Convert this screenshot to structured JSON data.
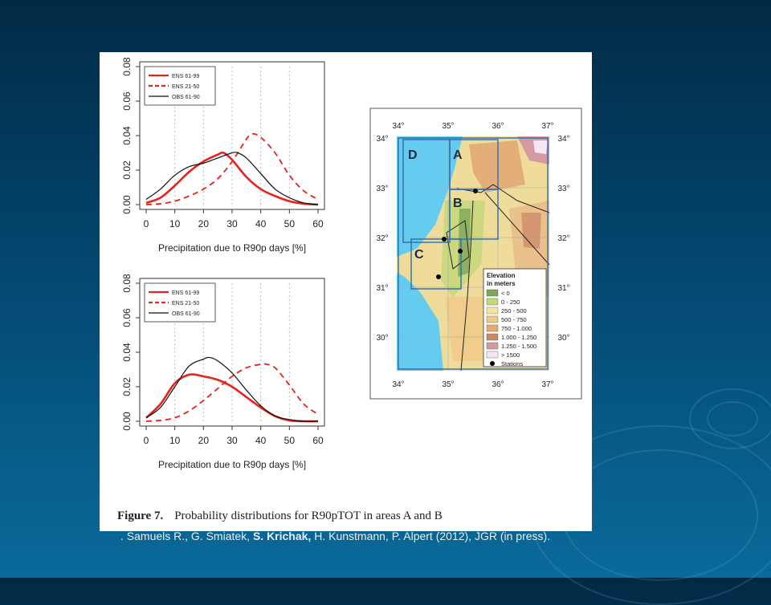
{
  "chart_data": [
    {
      "type": "line",
      "xlabel": "Precipitation due to R90p days [%]",
      "xticks": [
        "0",
        "10",
        "20",
        "30",
        "40",
        "50",
        "60"
      ],
      "yticks": [
        "0.00",
        "0.02",
        "0.04",
        "0.06",
        "0.08"
      ],
      "xlim": [
        0,
        60
      ],
      "ylim": [
        0,
        0.08
      ],
      "grid": "vertical dotted",
      "legend_position": "top-left",
      "series": [
        {
          "name": "ENS 61-99",
          "color": "#e8221c",
          "dash": "solid",
          "x": [
            0,
            5,
            10,
            15,
            20,
            25,
            27,
            30,
            35,
            40,
            45,
            50,
            55,
            60
          ],
          "values": [
            0.001,
            0.004,
            0.011,
            0.019,
            0.025,
            0.029,
            0.03,
            0.026,
            0.016,
            0.009,
            0.005,
            0.002,
            0.0005,
            0
          ]
        },
        {
          "name": "ENS 21-50",
          "color": "#e8221c",
          "dash": "dashed",
          "x": [
            0,
            5,
            10,
            15,
            20,
            25,
            30,
            35,
            37,
            40,
            45,
            50,
            55,
            60
          ],
          "values": [
            0,
            0.0005,
            0.002,
            0.005,
            0.009,
            0.015,
            0.025,
            0.038,
            0.041,
            0.039,
            0.03,
            0.017,
            0.008,
            0.003
          ]
        },
        {
          "name": "OBS 61-90",
          "color": "#111111",
          "dash": "solid",
          "x": [
            0,
            5,
            10,
            15,
            20,
            25,
            30,
            32,
            35,
            40,
            45,
            50,
            55,
            60
          ],
          "values": [
            0.003,
            0.009,
            0.017,
            0.022,
            0.024,
            0.027,
            0.03,
            0.03,
            0.027,
            0.018,
            0.009,
            0.004,
            0.001,
            0
          ]
        }
      ]
    },
    {
      "type": "line",
      "xlabel": "Precipitation due to R90p days [%]",
      "xticks": [
        "0",
        "10",
        "20",
        "30",
        "40",
        "50",
        "60"
      ],
      "yticks": [
        "0.00",
        "0.02",
        "0.04",
        "0.06",
        "0.08"
      ],
      "xlim": [
        0,
        60
      ],
      "ylim": [
        0,
        0.08
      ],
      "grid": "vertical dotted",
      "legend_position": "top-left",
      "series": [
        {
          "name": "ENS 61-99",
          "color": "#e8221c",
          "dash": "solid",
          "x": [
            0,
            5,
            10,
            15,
            20,
            25,
            30,
            35,
            40,
            45,
            50,
            55,
            60
          ],
          "values": [
            0.002,
            0.01,
            0.022,
            0.027,
            0.026,
            0.024,
            0.02,
            0.014,
            0.008,
            0.003,
            0.0005,
            0,
            0
          ]
        },
        {
          "name": "ENS 21-50",
          "color": "#e8221c",
          "dash": "dashed",
          "x": [
            0,
            5,
            10,
            15,
            20,
            25,
            30,
            35,
            40,
            42,
            45,
            50,
            55,
            60
          ],
          "values": [
            0,
            0.0005,
            0.002,
            0.006,
            0.012,
            0.019,
            0.026,
            0.031,
            0.033,
            0.033,
            0.031,
            0.021,
            0.01,
            0.004
          ]
        },
        {
          "name": "OBS 61-90",
          "color": "#111111",
          "dash": "solid",
          "x": [
            0,
            5,
            10,
            15,
            20,
            22,
            25,
            30,
            35,
            40,
            45,
            50,
            55,
            60
          ],
          "values": [
            0.002,
            0.008,
            0.02,
            0.032,
            0.036,
            0.037,
            0.035,
            0.028,
            0.018,
            0.009,
            0.003,
            0.001,
            0,
            0
          ]
        }
      ]
    }
  ],
  "map": {
    "lon_ticks": [
      "34°",
      "35°",
      "36°",
      "37°"
    ],
    "lat_ticks": [
      "34°",
      "33°",
      "32°",
      "31°",
      "30°"
    ],
    "area_labels": [
      "D",
      "A",
      "B",
      "C"
    ],
    "legend": {
      "title_line1": "Elevation",
      "title_line2": "in meters",
      "items": [
        {
          "label": "< 0",
          "color": "#7ea65a"
        },
        {
          "label": "0 - 250",
          "color": "#c6d77a"
        },
        {
          "label": "250 - 500",
          "color": "#f2e6a0"
        },
        {
          "label": "500 - 750",
          "color": "#f0c987"
        },
        {
          "label": "750 - 1.000",
          "color": "#e7a872"
        },
        {
          "label": "1.000 - 1.250",
          "color": "#c98866"
        },
        {
          "label": "1.250 - 1.500",
          "color": "#d49aa4"
        },
        {
          "label": "> 1500",
          "color": "#f4e6f2"
        }
      ],
      "stations_label": "Stations"
    }
  },
  "caption": {
    "label": "Figure 7.",
    "text": "Probability distributions for R90pTOT in areas A and B"
  },
  "citation": {
    "bullet": ".",
    "before": "Samuels R., G. Smiatek,",
    "bold": "S. Krichak,",
    "after": "H. Kunstmann, P. Alpert (2012), JGR (in press)."
  }
}
